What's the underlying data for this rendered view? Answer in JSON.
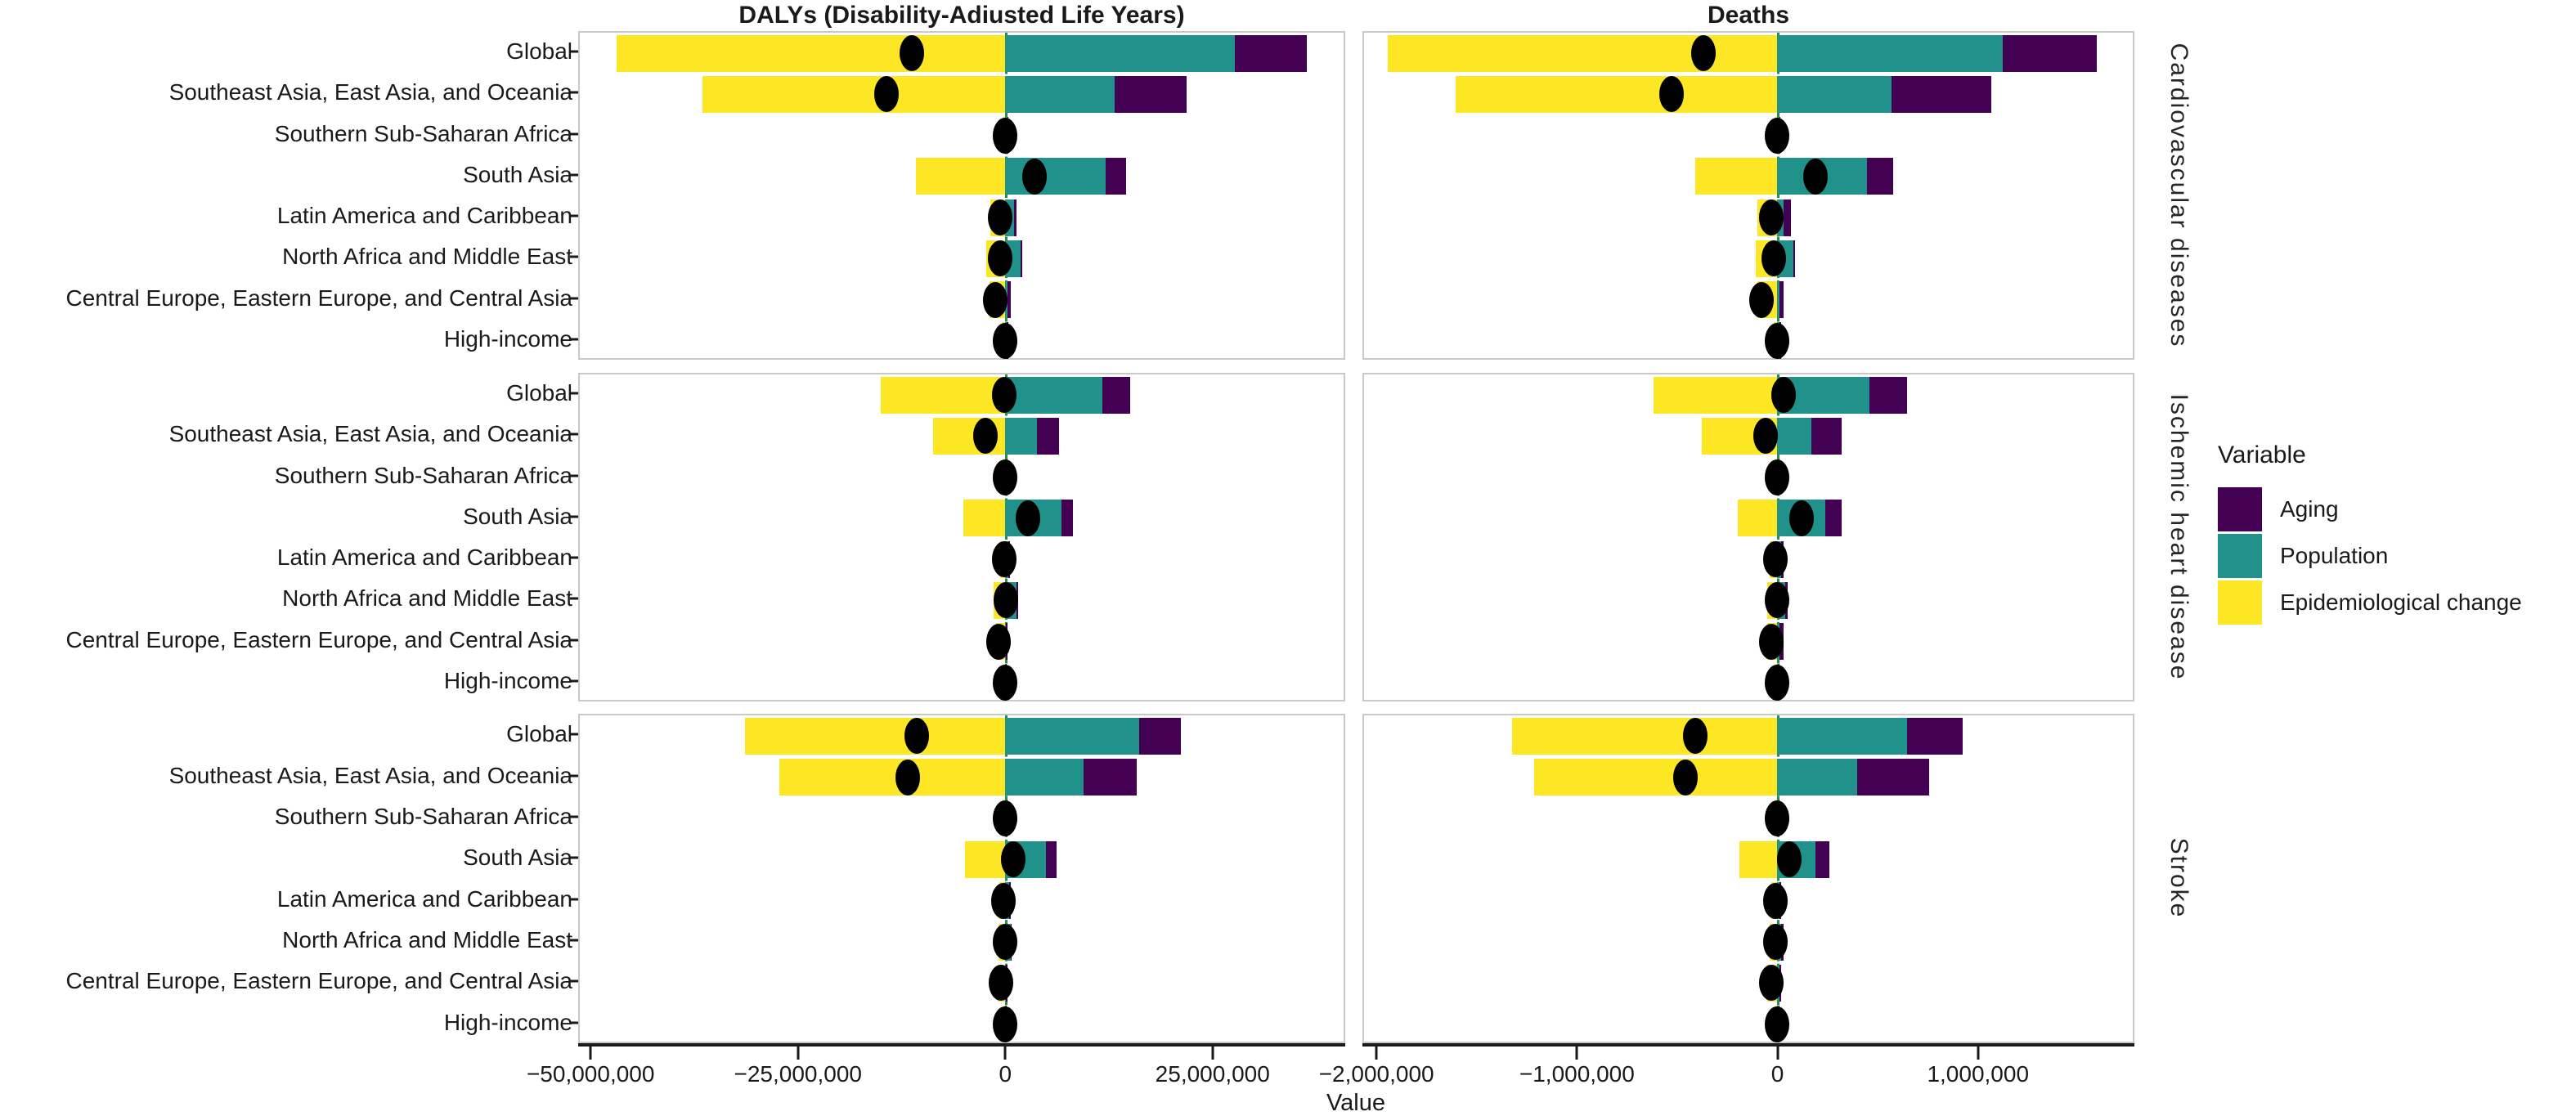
{
  "figure": {
    "column_titles": [
      "DALYs (Disability-Adiusted Life Years)",
      "Deaths"
    ],
    "row_labels": [
      "Cardiovascular diseases",
      "Ischemic heart disease",
      "Stroke"
    ],
    "x_axis_label": "Value",
    "legend": {
      "title": "Variable",
      "items": [
        {
          "label": "Aging",
          "color": "#440154"
        },
        {
          "label": "Population",
          "color": "#21918c"
        },
        {
          "label": "Epidemiological change",
          "color": "#fde725"
        }
      ]
    },
    "colors": {
      "aging": "#440154",
      "population": "#21918c",
      "epidemiological_change": "#fde725",
      "net_dot": "#000000",
      "zero_line": "#2c8c46",
      "panel_border": "#c9c9c9",
      "axis_line": "#1a1a1a"
    }
  },
  "chart_data": {
    "type": "bar",
    "orientation": "horizontal-stacked-diverging",
    "note": "Black dot marks net change per region; values estimated from axis scale",
    "facet_columns": [
      "DALYs (Disability-Adiusted Life Years)",
      "Deaths"
    ],
    "facet_rows": [
      "Cardiovascular diseases",
      "Ischemic heart disease",
      "Stroke"
    ],
    "regions": [
      "Global",
      "Southeast Asia, East Asia, and Oceania",
      "Southern Sub-Saharan Africa",
      "South Asia",
      "Latin America and Caribbean",
      "North Africa and Middle East",
      "Central Europe, Eastern Europe, and Central Asia",
      "High-income"
    ],
    "legend_position": "right",
    "grid": false,
    "xlim": {
      "dalys": [
        -51500000,
        41000000
      ],
      "deaths": [
        -2070000,
        1780000
      ]
    },
    "x_ticks": {
      "dalys": [
        {
          "value": -50000000,
          "label": "−50,000,000"
        },
        {
          "value": -25000000,
          "label": "−25,000,000"
        },
        {
          "value": 0,
          "label": "0"
        },
        {
          "value": 25000000,
          "label": "25,000,000"
        }
      ],
      "deaths": [
        {
          "value": -2000000,
          "label": "−2,000,000"
        },
        {
          "value": -1000000,
          "label": "−1,000,000"
        },
        {
          "value": 0,
          "label": "0"
        },
        {
          "value": 1000000,
          "label": "1,000,000"
        }
      ]
    },
    "panels": [
      {
        "row": "Cardiovascular diseases",
        "column": "DALYs (Disability-Adiusted Life Years)",
        "axis": "dalys",
        "values": [
          {
            "region": "Global",
            "epidemiological_change": -47000000,
            "population": 27800000,
            "aging": 8700000,
            "net": -11300000
          },
          {
            "region": "Southeast Asia, East Asia, and Oceania",
            "epidemiological_change": -36600000,
            "population": 13300000,
            "aging": 8700000,
            "net": -14400000
          },
          {
            "region": "Southern Sub-Saharan Africa",
            "epidemiological_change": -300000,
            "population": 250000,
            "aging": 50000,
            "net": 0
          },
          {
            "region": "South Asia",
            "epidemiological_change": -10800000,
            "population": 12200000,
            "aging": 2500000,
            "net": 3600000
          },
          {
            "region": "Latin America and Caribbean",
            "epidemiological_change": -1800000,
            "population": 1100000,
            "aging": 300000,
            "net": -600000
          },
          {
            "region": "North Africa and Middle East",
            "epidemiological_change": -2300000,
            "population": 1900000,
            "aging": 200000,
            "net": -600000
          },
          {
            "region": "Central Europe, Eastern Europe, and Central Asia",
            "epidemiological_change": -1900000,
            "population": 300000,
            "aging": 400000,
            "net": -1200000
          },
          {
            "region": "High-income",
            "epidemiological_change": -400000,
            "population": 200000,
            "aging": 200000,
            "net": 0
          }
        ]
      },
      {
        "row": "Cardiovascular diseases",
        "column": "Deaths",
        "axis": "deaths",
        "values": [
          {
            "region": "Global",
            "epidemiological_change": -1950000,
            "population": 1130000,
            "aging": 470000,
            "net": -370000
          },
          {
            "region": "Southeast Asia, East Asia, and Oceania",
            "epidemiological_change": -1610000,
            "population": 570000,
            "aging": 500000,
            "net": -530000
          },
          {
            "region": "Southern Sub-Saharan Africa",
            "epidemiological_change": -15000,
            "population": 10000,
            "aging": 5000,
            "net": 0
          },
          {
            "region": "South Asia",
            "epidemiological_change": -410000,
            "population": 450000,
            "aging": 130000,
            "net": 190000
          },
          {
            "region": "Latin America and Caribbean",
            "epidemiological_change": -100000,
            "population": 30000,
            "aging": 40000,
            "net": -30000
          },
          {
            "region": "North Africa and Middle East",
            "epidemiological_change": -110000,
            "population": 80000,
            "aging": 10000,
            "net": -20000
          },
          {
            "region": "Central Europe, Eastern Europe, and Central Asia",
            "epidemiological_change": -100000,
            "population": 10000,
            "aging": 20000,
            "net": -80000
          },
          {
            "region": "High-income",
            "epidemiological_change": -20000,
            "population": 10000,
            "aging": 10000,
            "net": 0
          }
        ]
      },
      {
        "row": "Ischemic heart disease",
        "column": "DALYs (Disability-Adiusted Life Years)",
        "axis": "dalys",
        "values": [
          {
            "region": "Global",
            "epidemiological_change": -15100000,
            "population": 11800000,
            "aging": 3400000,
            "net": -100000
          },
          {
            "region": "Southeast Asia, East Asia, and Oceania",
            "epidemiological_change": -8700000,
            "population": 3900000,
            "aging": 2600000,
            "net": -2400000
          },
          {
            "region": "Southern Sub-Saharan Africa",
            "epidemiological_change": -200000,
            "population": 150000,
            "aging": 50000,
            "net": 0
          },
          {
            "region": "South Asia",
            "epidemiological_change": -5100000,
            "population": 6800000,
            "aging": 1400000,
            "net": 2800000
          },
          {
            "region": "Latin America and Caribbean",
            "epidemiological_change": -600000,
            "population": 400000,
            "aging": 200000,
            "net": -100000
          },
          {
            "region": "North Africa and Middle East",
            "epidemiological_change": -1400000,
            "population": 1400000,
            "aging": 200000,
            "net": 100000
          },
          {
            "region": "Central Europe, Eastern Europe, and Central Asia",
            "epidemiological_change": -1100000,
            "population": 100000,
            "aging": 200000,
            "net": -800000
          },
          {
            "region": "High-income",
            "epidemiological_change": -200000,
            "population": 100000,
            "aging": 100000,
            "net": 0
          }
        ]
      },
      {
        "row": "Ischemic heart disease",
        "column": "Deaths",
        "axis": "deaths",
        "values": [
          {
            "region": "Global",
            "epidemiological_change": -620000,
            "population": 460000,
            "aging": 190000,
            "net": 30000
          },
          {
            "region": "Southeast Asia, East Asia, and Oceania",
            "epidemiological_change": -380000,
            "population": 170000,
            "aging": 150000,
            "net": -60000
          },
          {
            "region": "Southern Sub-Saharan Africa",
            "epidemiological_change": -10000,
            "population": 5000,
            "aging": 5000,
            "net": 0
          },
          {
            "region": "South Asia",
            "epidemiological_change": -200000,
            "population": 240000,
            "aging": 80000,
            "net": 120000
          },
          {
            "region": "Latin America and Caribbean",
            "epidemiological_change": -40000,
            "population": 20000,
            "aging": 10000,
            "net": -10000
          },
          {
            "region": "North Africa and Middle East",
            "epidemiological_change": -50000,
            "population": 40000,
            "aging": 10000,
            "net": 0
          },
          {
            "region": "Central Europe, Eastern Europe, and Central Asia",
            "epidemiological_change": -50000,
            "population": 10000,
            "aging": 20000,
            "net": -30000
          },
          {
            "region": "High-income",
            "epidemiological_change": -10000,
            "population": 5000,
            "aging": 5000,
            "net": 0
          }
        ]
      },
      {
        "row": "Stroke",
        "column": "DALYs (Disability-Adiusted Life Years)",
        "axis": "dalys",
        "values": [
          {
            "region": "Global",
            "epidemiological_change": -31500000,
            "population": 16200000,
            "aging": 5100000,
            "net": -10700000
          },
          {
            "region": "Southeast Asia, East Asia, and Oceania",
            "epidemiological_change": -27300000,
            "population": 9500000,
            "aging": 6400000,
            "net": -11800000
          },
          {
            "region": "Southern Sub-Saharan Africa",
            "epidemiological_change": -300000,
            "population": 200000,
            "aging": 100000,
            "net": 0
          },
          {
            "region": "South Asia",
            "epidemiological_change": -4900000,
            "population": 5000000,
            "aging": 1200000,
            "net": 1000000
          },
          {
            "region": "Latin America and Caribbean",
            "epidemiological_change": -700000,
            "population": 500000,
            "aging": 200000,
            "net": -200000
          },
          {
            "region": "North Africa and Middle East",
            "epidemiological_change": -800000,
            "population": 700000,
            "aging": 100000,
            "net": 0
          },
          {
            "region": "Central Europe, Eastern Europe, and Central Asia",
            "epidemiological_change": -900000,
            "population": 100000,
            "aging": 200000,
            "net": -500000
          },
          {
            "region": "High-income",
            "epidemiological_change": -200000,
            "population": 100000,
            "aging": 100000,
            "net": 0
          }
        ]
      },
      {
        "row": "Stroke",
        "column": "Deaths",
        "axis": "deaths",
        "values": [
          {
            "region": "Global",
            "epidemiological_change": -1330000,
            "population": 650000,
            "aging": 280000,
            "net": -410000
          },
          {
            "region": "Southeast Asia, East Asia, and Oceania",
            "epidemiological_change": -1220000,
            "population": 400000,
            "aging": 360000,
            "net": -460000
          },
          {
            "region": "Southern Sub-Saharan Africa",
            "epidemiological_change": -10000,
            "population": 5000,
            "aging": 5000,
            "net": 0
          },
          {
            "region": "South Asia",
            "epidemiological_change": -190000,
            "population": 190000,
            "aging": 70000,
            "net": 60000
          },
          {
            "region": "Latin America and Caribbean",
            "epidemiological_change": -30000,
            "population": 10000,
            "aging": 10000,
            "net": -10000
          },
          {
            "region": "North Africa and Middle East",
            "epidemiological_change": -40000,
            "population": 20000,
            "aging": 10000,
            "net": -10000
          },
          {
            "region": "Central Europe, Eastern Europe, and Central Asia",
            "epidemiological_change": -50000,
            "population": 10000,
            "aging": 10000,
            "net": -30000
          },
          {
            "region": "High-income",
            "epidemiological_change": -10000,
            "population": 5000,
            "aging": 5000,
            "net": 0
          }
        ]
      }
    ]
  }
}
